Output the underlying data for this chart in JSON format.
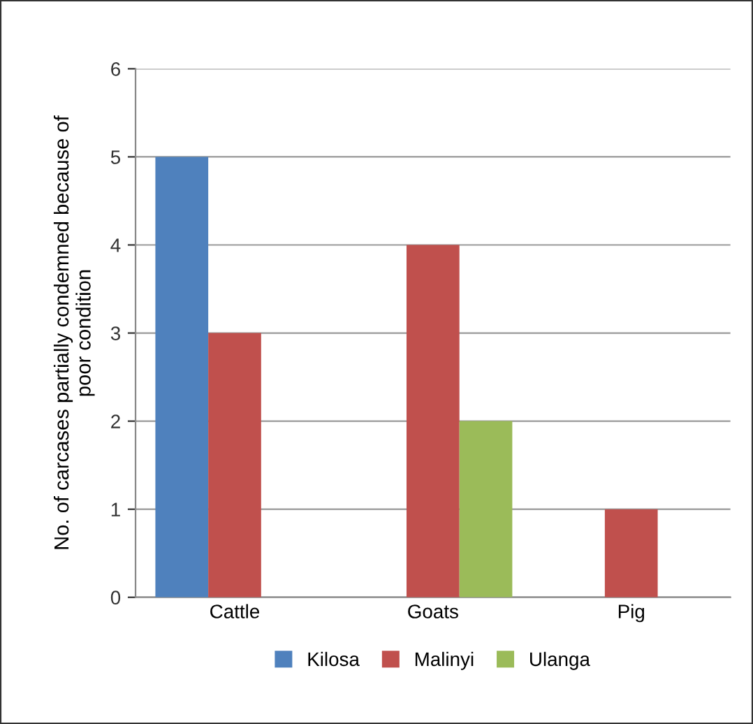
{
  "chart_data": {
    "type": "bar",
    "categories": [
      "Cattle",
      "Goats",
      "Pig"
    ],
    "series": [
      {
        "name": "Kilosa",
        "color": "#4f81bd",
        "values": [
          5,
          null,
          null
        ]
      },
      {
        "name": "Malinyi",
        "color": "#c0504d",
        "values": [
          3,
          4,
          1
        ]
      },
      {
        "name": "Ulanga",
        "color": "#9bbb59",
        "values": [
          null,
          2,
          null
        ]
      }
    ],
    "ylabel": "No. of carcases partially condemned because of\npoor condition",
    "ylim": [
      0,
      6
    ],
    "yticks": [
      0,
      1,
      2,
      3,
      4,
      5,
      6
    ],
    "grid": "y",
    "legend": "bottom"
  }
}
